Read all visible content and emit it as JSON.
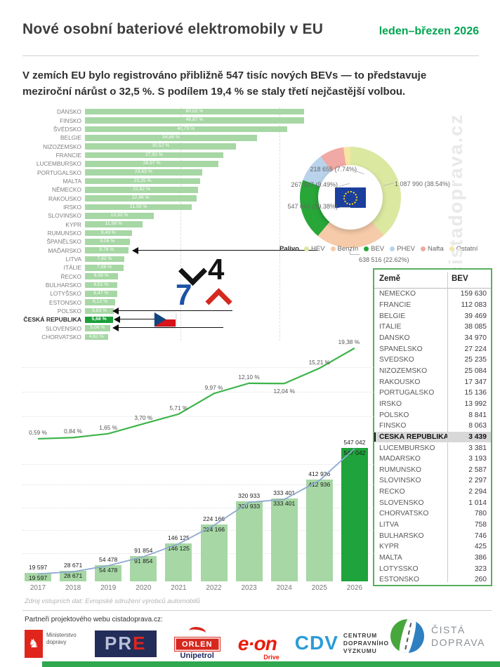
{
  "header": {
    "title": "Nové osobní bateriové elektromobily v EU",
    "period": "leden–březen 2026"
  },
  "intro": {
    "line1": "V zemích EU bylo registrováno přibližně 547 tisíc nových BEVs — to představuje",
    "line2": "meziroční nárůst o 32,5 %. S podílem 19,4 % se staly třetí nejčastější volbou."
  },
  "watermark": "cistadoprava.cz",
  "chart_data": [
    {
      "type": "bar",
      "title": "Podíl BEV na nových registracích podle země",
      "orientation": "horizontal",
      "unit": "%",
      "xlim": [
        0,
        44.2
      ],
      "grid": "dashed-vertical",
      "highlight": "ČESKÁ REPUBLIKA",
      "categories": [
        "DÁNSKO",
        "FINSKO",
        "ŠVÉDSKO",
        "BELGIE",
        "NIZOZEMSKO",
        "FRANCIE",
        "LUCEMBURSKO",
        "PORTUGALSKO",
        "MALTA",
        "NĚMECKO",
        "RAKOUSKO",
        "IRSKO",
        "SLOVINSKO",
        "KYPR",
        "RUMUNSKO",
        "ŠPANĚLSKO",
        "MAĎARSKO",
        "LITVA",
        "ITÁLIE",
        "ŘECKO",
        "BULHARSKO",
        "LOTYŠSKO",
        "ESTONSKO",
        "POLSKO",
        "ČESKÁ REPUBLIKA",
        "SLOVENSKO",
        "CHORVATSKO"
      ],
      "values": [
        80.02,
        46.87,
        40.73,
        34.68,
        30.52,
        27.91,
        26.97,
        23.63,
        23.25,
        22.82,
        22.46,
        21.55,
        13.92,
        11.58,
        9.43,
        9.06,
        8.76,
        7.92,
        7.86,
        6.59,
        6.51,
        6.47,
        6.12,
        5.83,
        5.68,
        5.06,
        4.62
      ],
      "labels": [
        "80,02 %",
        "46,87 %",
        "40,73 %",
        "34,68 %",
        "30,52 %",
        "27,91 %",
        "26,97 %",
        "23,63 %",
        "23,25 %",
        "22,82 %",
        "22,46 %",
        "21,55 %",
        "13,92 %",
        "11,58 %",
        "9,43 %",
        "9,06 %",
        "8,76 %",
        "7,92 %",
        "7,86 %",
        "6,59 %",
        "6,51 %",
        "6,47 %",
        "6,12 %",
        "5,83 %",
        "5,68 %",
        "5,06 %",
        "4,62 %"
      ]
    },
    {
      "type": "pie",
      "title": "Palivo",
      "slices": [
        {
          "name": "HEV",
          "value": 1087990,
          "pct": 38.54,
          "color": "#dbe8a0",
          "label": "1 087 990 (38.54%)"
        },
        {
          "name": "Benzín",
          "value": 638516,
          "pct": 22.62,
          "color": "#f6cbaa",
          "label": "638 516 (22.62%)"
        },
        {
          "name": "BEV",
          "value": 547042,
          "pct": 19.38,
          "color": "#28a638",
          "label": "547 042 (19.38%)"
        },
        {
          "name": "PHEV",
          "value": 267927,
          "pct": 9.49,
          "color": "#b9d3eb",
          "label": "267 927 (9.49%)"
        },
        {
          "name": "Nafta",
          "value": 218655,
          "pct": 7.74,
          "color": "#f0a9a4",
          "label": "218 655 (7.74%)"
        },
        {
          "name": "Ostatní",
          "value": null,
          "pct": 2.23,
          "color": "#f6e6a4",
          "label": ""
        }
      ]
    },
    {
      "type": "line",
      "name": "Podíl BEV v EU (%)",
      "x": [
        2017,
        2018,
        2019,
        2020,
        2021,
        2022,
        2023,
        2024,
        2025,
        2026
      ],
      "values": [
        0.59,
        0.84,
        1.65,
        3.7,
        5.71,
        9.97,
        12.1,
        12.04,
        15.21,
        19.38
      ],
      "labels": [
        "0,59 %",
        "0,84 %",
        "1,65 %",
        "3,70 %",
        "5,71 %",
        "9,97 %",
        "12,10 %",
        "12,04 %",
        "15,21 %",
        "19,38 %"
      ],
      "grid": "dotted-horizontal",
      "color": "#3cb44a"
    },
    {
      "type": "bar",
      "name": "Registrace BEV v EU",
      "x": [
        2017,
        2018,
        2019,
        2020,
        2021,
        2022,
        2023,
        2024,
        2025,
        2026
      ],
      "values": [
        19597,
        28671,
        54478,
        91854,
        146125,
        224166,
        320933,
        333401,
        412936,
        547042
      ],
      "labels": [
        "19 597",
        "28 671",
        "54 478",
        "91 854",
        "146 125",
        "224 166",
        "320 933",
        "333 401",
        "412 936",
        "547 042"
      ],
      "highlight_x": 2026,
      "trendline_color": "#8fa9cf"
    }
  ],
  "donut": {
    "legend_title": "Palivo",
    "legend": [
      {
        "label": "HEV",
        "color": "#dbe8a0"
      },
      {
        "label": "Benzín",
        "color": "#f6cbaa"
      },
      {
        "label": "BEV",
        "color": "#28a638"
      },
      {
        "label": "PHEV",
        "color": "#b9d3eb"
      },
      {
        "label": "Nafta",
        "color": "#f0a9a4"
      },
      {
        "label": "Ostatní",
        "color": "#f6e6a4"
      }
    ],
    "callouts": [
      "218 655 (7.74%)",
      "267 927 (9.49%)",
      "547 042 (19.38%)",
      "1 087 990 (38.54%)",
      "638 516 (22.62%)"
    ]
  },
  "table": {
    "headers": [
      "Země",
      "BEV"
    ],
    "highlight_row": "ČESKÁ REPUBLIKA",
    "rows": [
      [
        "NĚMECKO",
        "159 630"
      ],
      [
        "FRANCIE",
        "112 083"
      ],
      [
        "BELGIE",
        "39 469"
      ],
      [
        "ITÁLIE",
        "38 085"
      ],
      [
        "DÁNSKO",
        "34 970"
      ],
      [
        "ŠPANĚLSKO",
        "27 224"
      ],
      [
        "ŠVÉDSKO",
        "25 235"
      ],
      [
        "NIZOZEMSKO",
        "25 084"
      ],
      [
        "RAKOUSKO",
        "17 347"
      ],
      [
        "PORTUGALSKO",
        "15 136"
      ],
      [
        "IRSKO",
        "13 992"
      ],
      [
        "POLSKO",
        "8 841"
      ],
      [
        "FINSKO",
        "8 063"
      ],
      [
        "ČESKÁ REPUBLIKA",
        "3 439"
      ],
      [
        "LUCEMBURSKO",
        "3 381"
      ],
      [
        "MAĎARSKO",
        "3 193"
      ],
      [
        "RUMUNSKO",
        "2 587"
      ],
      [
        "SLOVINSKO",
        "2 297"
      ],
      [
        "ŘECKO",
        "2 294"
      ],
      [
        "SLOVENSKO",
        "1 014"
      ],
      [
        "CHORVATSKO",
        "780"
      ],
      [
        "LITVA",
        "758"
      ],
      [
        "BULHARSKO",
        "746"
      ],
      [
        "KYPR",
        "425"
      ],
      [
        "MALTA",
        "386"
      ],
      [
        "LOTYŠSKO",
        "323"
      ],
      [
        "ESTONSKO",
        "260"
      ]
    ]
  },
  "footer": {
    "source_note": "Zdroj vstupních dat: Evropské sdružení výrobců automobilů",
    "partners_heading": "Partneři projektového webu cistadoprava.cz:",
    "ministry": {
      "line1": "Ministerstvo",
      "line2": "dopravy"
    },
    "pre": {
      "pr": "PR",
      "e": "E"
    },
    "orlen": {
      "box": "ORLEN",
      "sub": "Unipetrol"
    },
    "eon": {
      "name": "e·on",
      "sub": "Drive"
    },
    "cdv": {
      "abbr": "CDV",
      "line1": "CENTRUM",
      "line2": "DOPRAVNÍHO",
      "line3": "VÝZKUMU"
    },
    "brand": {
      "line1": "ČISTÁ",
      "line2": "DOPRAVA"
    }
  }
}
